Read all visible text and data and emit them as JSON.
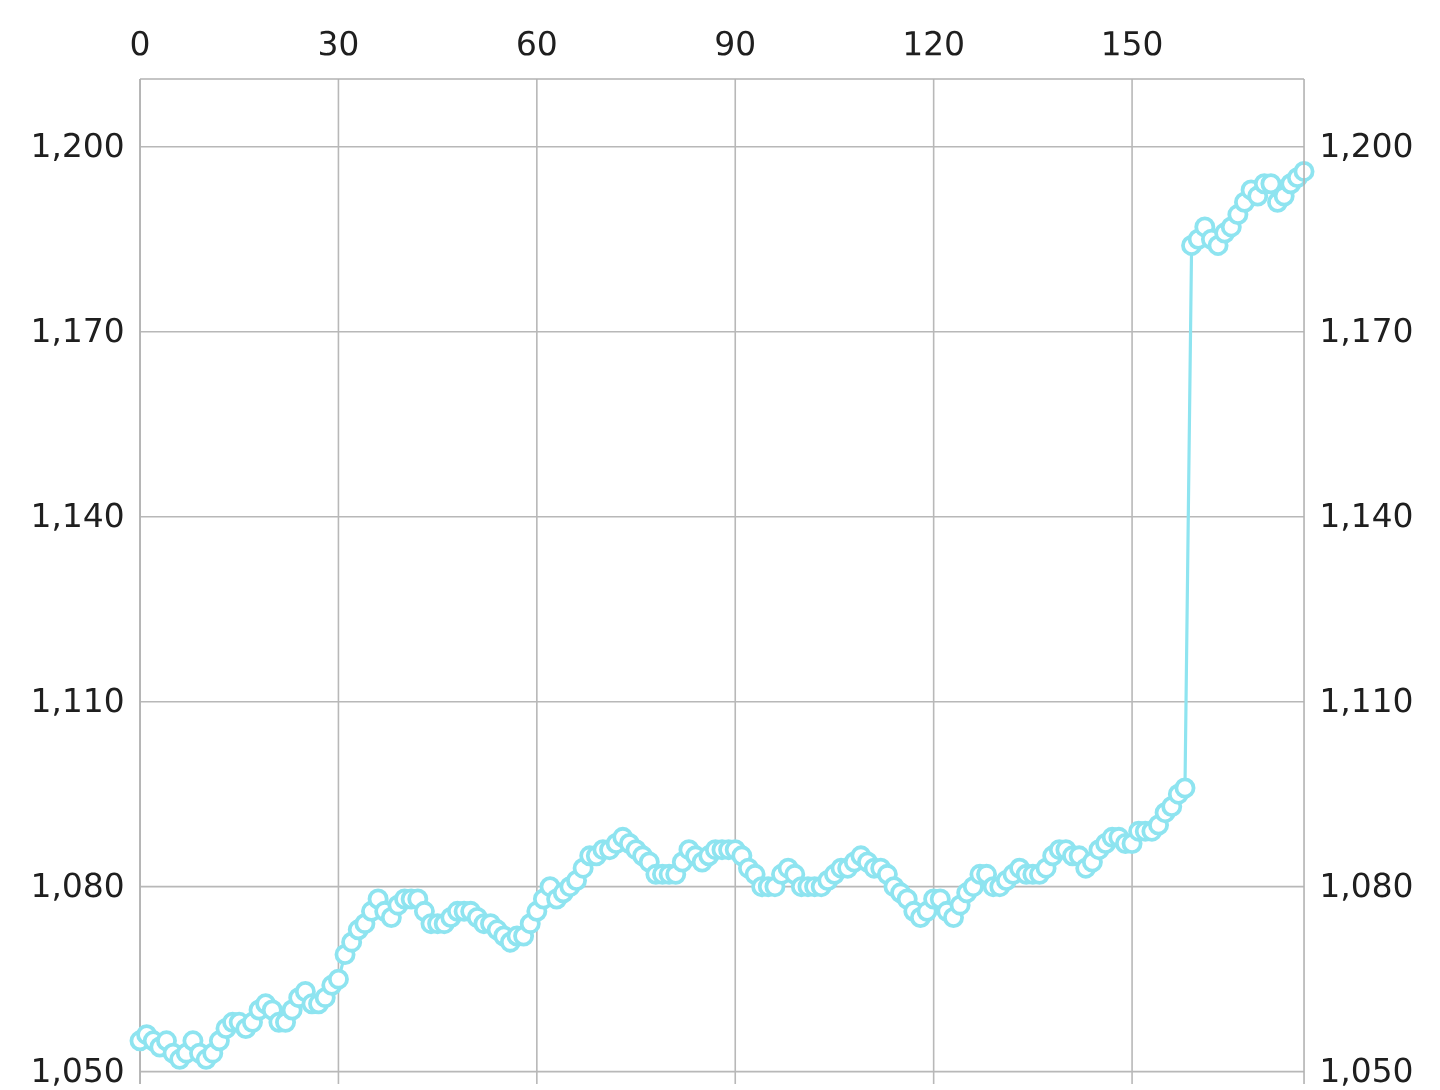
{
  "chart_data": {
    "type": "line",
    "x": [
      0,
      1,
      2,
      3,
      4,
      5,
      6,
      7,
      8,
      9,
      10,
      11,
      12,
      13,
      14,
      15,
      16,
      17,
      18,
      19,
      20,
      21,
      22,
      23,
      24,
      25,
      26,
      27,
      28,
      29,
      30,
      31,
      32,
      33,
      34,
      35,
      36,
      37,
      38,
      39,
      40,
      41,
      42,
      43,
      44,
      45,
      46,
      47,
      48,
      49,
      50,
      51,
      52,
      53,
      54,
      55,
      56,
      57,
      58,
      59,
      60,
      61,
      62,
      63,
      64,
      65,
      66,
      67,
      68,
      69,
      70,
      71,
      72,
      73,
      74,
      75,
      76,
      77,
      78,
      79,
      80,
      81,
      82,
      83,
      84,
      85,
      86,
      87,
      88,
      89,
      90,
      91,
      92,
      93,
      94,
      95,
      96,
      97,
      98,
      99,
      100,
      101,
      102,
      103,
      104,
      105,
      106,
      107,
      108,
      109,
      110,
      111,
      112,
      113,
      114,
      115,
      116,
      117,
      118,
      119,
      120,
      121,
      122,
      123,
      124,
      125,
      126,
      127,
      128,
      129,
      130,
      131,
      132,
      133,
      134,
      135,
      136,
      137,
      138,
      139,
      140,
      141,
      142,
      143,
      144,
      145,
      146,
      147,
      148,
      149,
      150,
      151,
      152,
      153,
      154,
      155,
      156,
      157,
      158,
      159,
      160,
      161,
      162,
      163,
      164,
      165,
      166,
      167,
      168,
      169,
      170,
      171,
      172,
      173,
      174,
      175,
      176
    ],
    "values": [
      1055,
      1056,
      1055,
      1054,
      1055,
      1053,
      1052,
      1053,
      1055,
      1053,
      1052,
      1053,
      1055,
      1057,
      1058,
      1058,
      1057,
      1058,
      1060,
      1061,
      1060,
      1058,
      1058,
      1060,
      1062,
      1063,
      1061,
      1061,
      1062,
      1064,
      1065,
      1069,
      1071,
      1073,
      1074,
      1076,
      1078,
      1076,
      1075,
      1077,
      1078,
      1078,
      1078,
      1076,
      1074,
      1074,
      1074,
      1075,
      1076,
      1076,
      1076,
      1075,
      1074,
      1074,
      1073,
      1072,
      1071,
      1072,
      1072,
      1074,
      1076,
      1078,
      1080,
      1078,
      1079,
      1080,
      1081,
      1083,
      1085,
      1085,
      1086,
      1086,
      1087,
      1088,
      1087,
      1086,
      1085,
      1084,
      1082,
      1082,
      1082,
      1082,
      1084,
      1086,
      1085,
      1084,
      1085,
      1086,
      1086,
      1086,
      1086,
      1085,
      1083,
      1082,
      1080,
      1080,
      1080,
      1082,
      1083,
      1082,
      1080,
      1080,
      1080,
      1080,
      1081,
      1082,
      1083,
      1083,
      1084,
      1085,
      1084,
      1083,
      1083,
      1082,
      1080,
      1079,
      1078,
      1076,
      1075,
      1076,
      1078,
      1078,
      1076,
      1075,
      1077,
      1079,
      1080,
      1082,
      1082,
      1080,
      1080,
      1081,
      1082,
      1083,
      1082,
      1082,
      1082,
      1083,
      1085,
      1086,
      1086,
      1085,
      1085,
      1083,
      1084,
      1086,
      1087,
      1088,
      1088,
      1087,
      1087,
      1089,
      1089,
      1089,
      1090,
      1092,
      1093,
      1095,
      1096,
      1184,
      1185,
      1187,
      1185,
      1184,
      1186,
      1187,
      1189,
      1191,
      1193,
      1192,
      1194,
      1194,
      1191,
      1192,
      1194,
      1195,
      1196
    ],
    "color": "#8ee4f0",
    "marker": "circle",
    "line_style": "solid",
    "grid": true,
    "xlim": [
      0,
      176
    ],
    "xticks": [
      0,
      30,
      60,
      90,
      120,
      150
    ],
    "ylim": [
      1048,
      1211
    ],
    "yticks": [
      {
        "value": 1050,
        "label": "1,050"
      },
      {
        "value": 1080,
        "label": "1,080"
      },
      {
        "value": 1110,
        "label": "1,110"
      },
      {
        "value": 1140,
        "label": "1,140"
      },
      {
        "value": 1170,
        "label": "1,170"
      },
      {
        "value": 1200,
        "label": "1,200"
      }
    ],
    "y2lim": [
      1048,
      1211
    ],
    "y2ticks": [
      {
        "value": 1050,
        "label": "1,050"
      },
      {
        "value": 1080,
        "label": "1,080"
      },
      {
        "value": 1110,
        "label": "1,110"
      },
      {
        "value": 1140,
        "label": "1,140"
      },
      {
        "value": 1170,
        "label": "1,170"
      },
      {
        "value": 1200,
        "label": "1,200"
      }
    ]
  }
}
